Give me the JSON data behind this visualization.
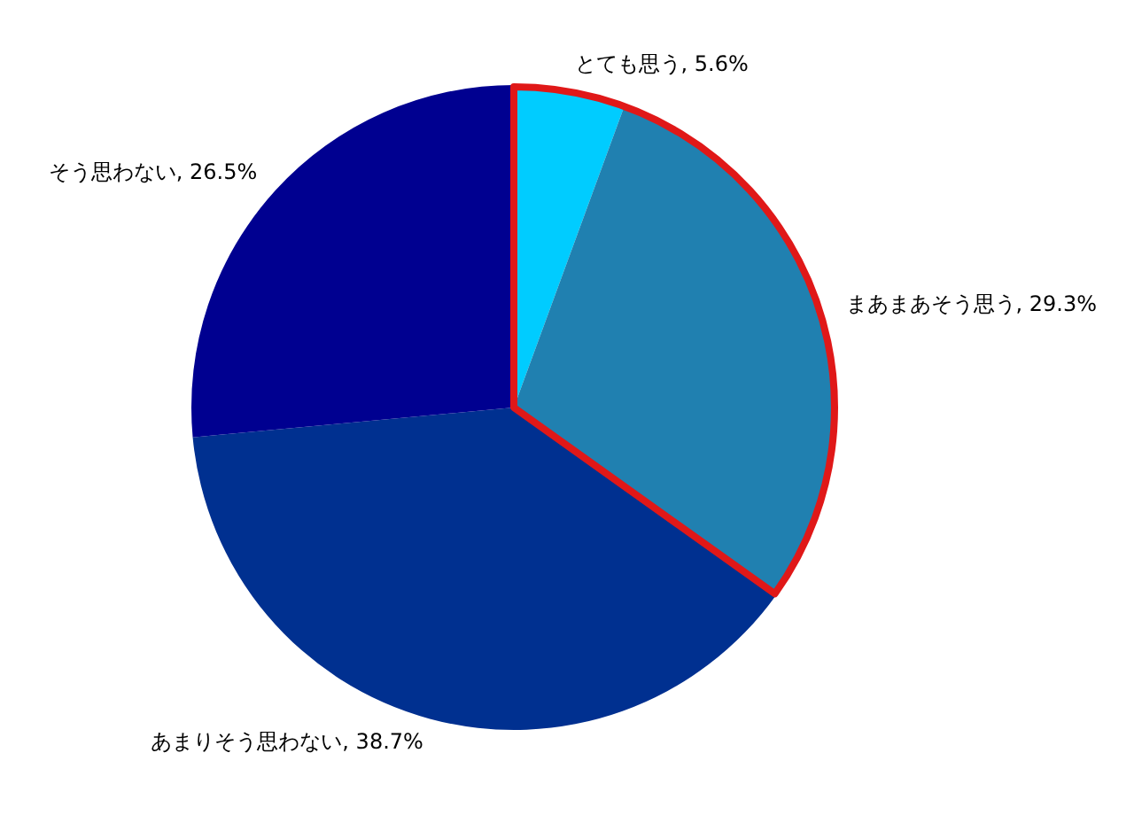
{
  "chart_data": {
    "type": "pie",
    "categories": [
      "とても思う",
      "まあまあそう思う",
      "あまりそう思わない",
      "そう思わない"
    ],
    "values": [
      5.6,
      29.3,
      38.7,
      26.5
    ],
    "value_labels": [
      "5.6%",
      "29.3%",
      "38.7%",
      "26.5%"
    ],
    "colors": [
      "#00ccff",
      "#2080b0",
      "#003090",
      "#000090"
    ],
    "legend": false
  }
}
